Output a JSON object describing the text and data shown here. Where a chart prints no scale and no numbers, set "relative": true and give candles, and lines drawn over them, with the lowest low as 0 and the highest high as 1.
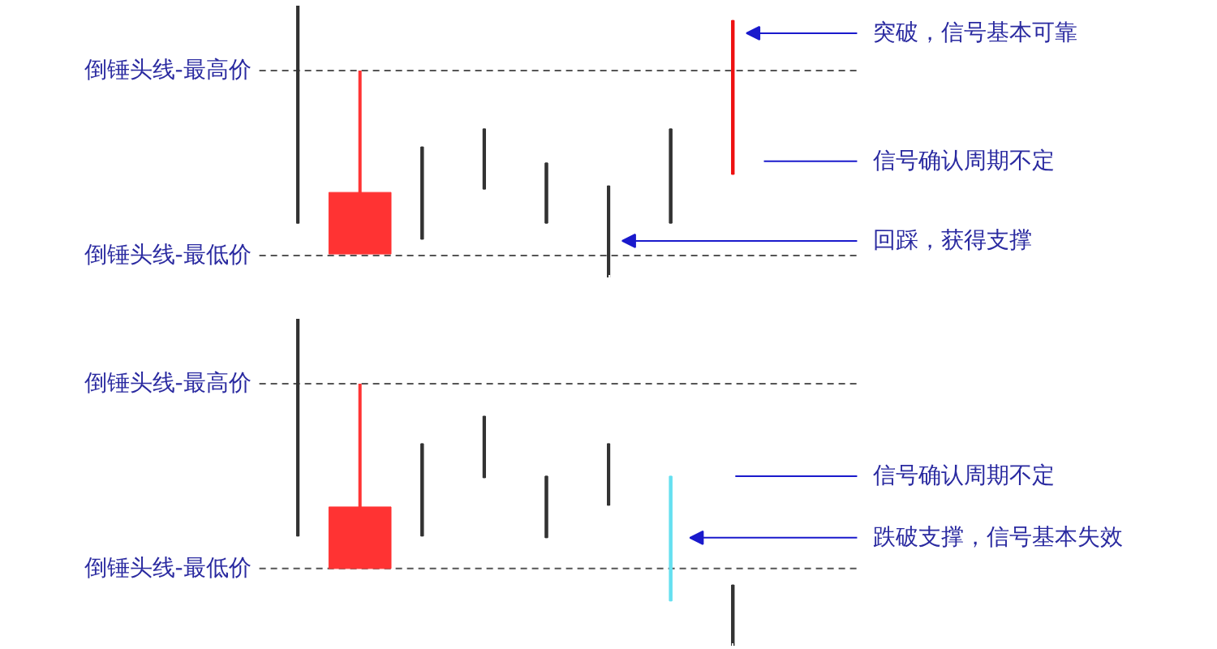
{
  "chart_data": [
    {
      "type": "candlestick",
      "relative": true,
      "categories": [
        null,
        null,
        null,
        null,
        null,
        null,
        null,
        null
      ],
      "ohlc": [
        [
          1.0,
          1.0,
          0.202,
          0.202
        ],
        [
          0.089,
          0.762,
          0.089,
          0.315
        ],
        [
          0.482,
          0.482,
          0.143,
          0.143
        ],
        [
          0.548,
          0.548,
          0.327,
          0.327
        ],
        [
          0.423,
          0.423,
          0.202,
          0.202
        ],
        [
          0.339,
          0.339,
          0.0,
          0.0
        ],
        [
          0.548,
          0.548,
          0.202,
          0.202
        ],
        [
          0.381,
          0.946,
          0.381,
          0.946
        ]
      ],
      "colors": [
        "#333333",
        "#ff3333",
        "#333333",
        "#333333",
        "#333333",
        "#333333",
        "#333333",
        "#ee1111"
      ],
      "ref_lines": [
        {
          "axis": "y",
          "value": 0.762,
          "label": "倒锤头线-最高价",
          "color": "#555555",
          "line_style": "dashed"
        },
        {
          "axis": "y",
          "value": 0.083,
          "label": "倒锤头线-最低价",
          "color": "#555555",
          "line_style": "dashed"
        }
      ],
      "annotations": [
        "突破，信号基本可靠",
        "信号确认周期不定",
        "回踩，获得支撑"
      ]
    },
    {
      "type": "candlestick",
      "relative": true,
      "categories": [
        null,
        null,
        null,
        null,
        null,
        null,
        null,
        null
      ],
      "ohlc": [
        [
          1.0,
          1.0,
          0.337,
          0.337
        ],
        [
          0.238,
          0.802,
          0.238,
          0.426
        ],
        [
          0.619,
          0.619,
          0.337,
          0.337
        ],
        [
          0.703,
          0.703,
          0.515,
          0.515
        ],
        [
          0.52,
          0.52,
          0.332,
          0.332
        ],
        [
          0.619,
          0.619,
          0.431,
          0.431
        ],
        [
          0.52,
          0.52,
          0.139,
          0.139
        ],
        [
          0.188,
          0.188,
          0.0,
          0.0
        ]
      ],
      "colors": [
        "#333333",
        "#ff3333",
        "#333333",
        "#333333",
        "#333333",
        "#333333",
        "#66e0f0",
        "#333333"
      ],
      "ref_lines": [
        {
          "axis": "y",
          "value": 0.802,
          "label": "倒锤头线-最高价",
          "color": "#555555",
          "line_style": "dashed"
        },
        {
          "axis": "y",
          "value": 0.238,
          "label": "倒锤头线-最低价",
          "color": "#555555",
          "line_style": "dashed"
        }
      ],
      "annotations": [
        "信号确认周期不定",
        "跌破支撑，信号基本失效"
      ]
    }
  ]
}
